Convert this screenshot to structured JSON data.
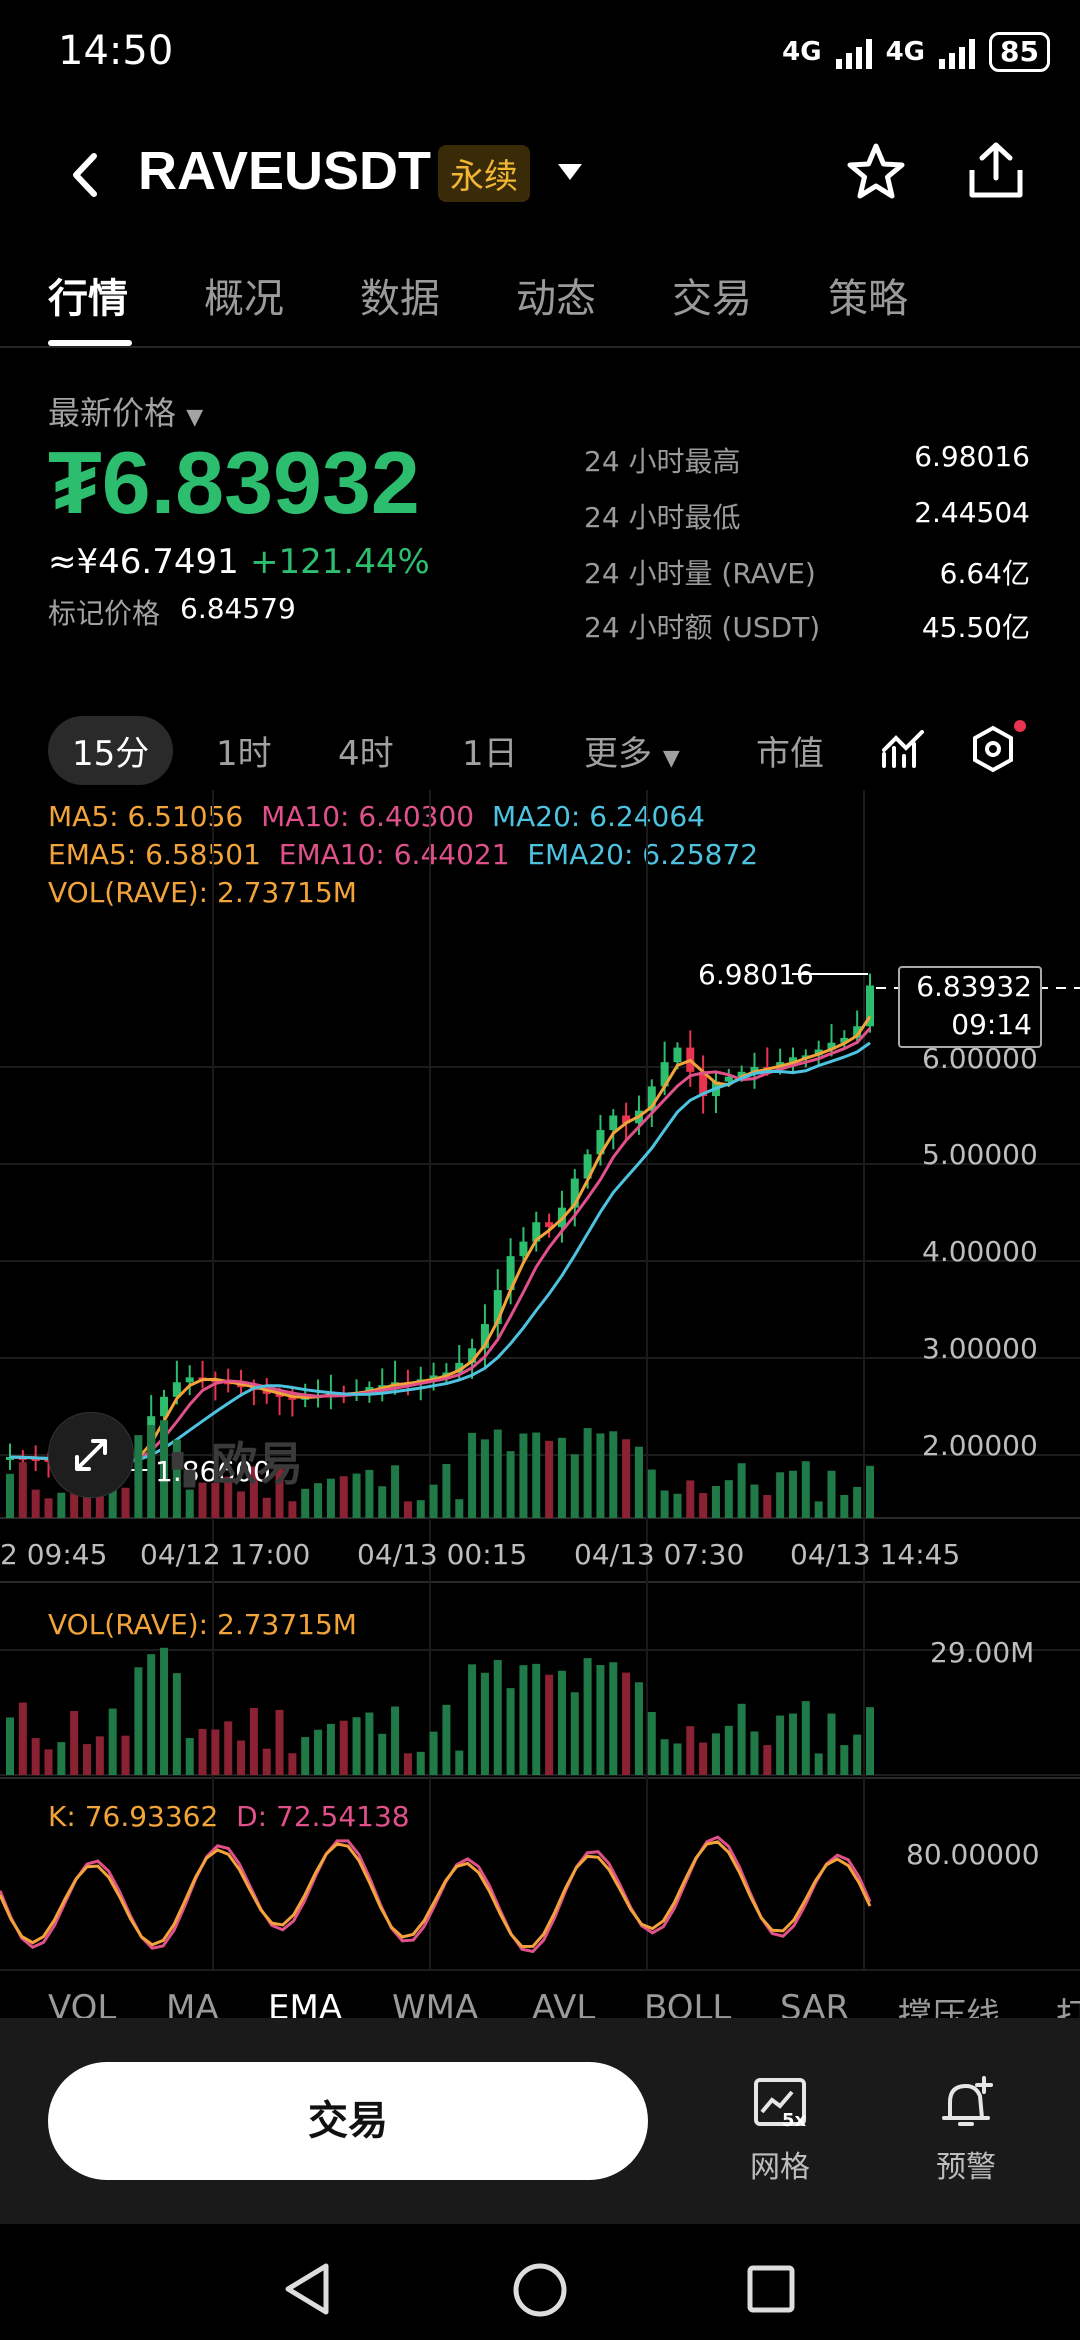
{
  "status": {
    "time": "14:50",
    "net1": "4G",
    "net2": "4G",
    "battery": "85"
  },
  "header": {
    "symbol": "RAVEUSDT",
    "badge": "永续"
  },
  "tabs": [
    "行情",
    "概况",
    "数据",
    "动态",
    "交易",
    "策略"
  ],
  "ticker": {
    "label": "最新价格",
    "price": "₮6.83932",
    "cny": "≈¥46.7491",
    "change": "+121.44%",
    "mark_label": "标记价格",
    "mark_price": "6.84579",
    "stats": [
      {
        "k": "24 小时最高",
        "v": "6.98016"
      },
      {
        "k": "24 小时最低",
        "v": "2.44504"
      },
      {
        "k": "24 小时量 (RAVE)",
        "v": "6.64亿"
      },
      {
        "k": "24 小时额 (USDT)",
        "v": "45.50亿"
      }
    ]
  },
  "timeframes": [
    "15分",
    "1时",
    "4时",
    "1日",
    "更多",
    "市值"
  ],
  "indicators": {
    "ma5": "MA5: 6.51056",
    "ma10": "MA10: 6.40300",
    "ma20": "MA20: 6.24064",
    "ema5": "EMA5: 6.58501",
    "ema10": "EMA10: 6.44021",
    "ema20": "EMA20: 6.25872",
    "vol": "VOL(RAVE): 2.73715M"
  },
  "chart_data": {
    "type": "candlestick",
    "y_ticks": [
      "6.00000",
      "5.00000",
      "4.00000",
      "3.00000",
      "2.00000"
    ],
    "y_tick_values": [
      6,
      5,
      4,
      3,
      2
    ],
    "x_ticks": [
      "2 09:45",
      "04/12 17:00",
      "04/13 00:15",
      "04/13 07:30",
      "04/13 14:45"
    ],
    "high_label": "6.98016",
    "low_label": "1.86600",
    "current_price": "6.83932",
    "countdown": "09:14",
    "watermark": "欧易",
    "close_path": [
      1.98,
      1.97,
      1.96,
      1.95,
      1.95,
      1.94,
      1.93,
      1.92,
      1.93,
      1.92,
      2.05,
      2.4,
      2.6,
      2.75,
      2.8,
      2.78,
      2.76,
      2.73,
      2.7,
      2.68,
      2.63,
      2.6,
      2.58,
      2.6,
      2.62,
      2.64,
      2.62,
      2.65,
      2.7,
      2.72,
      2.75,
      2.74,
      2.78,
      2.82,
      2.85,
      2.95,
      3.1,
      3.35,
      3.7,
      4.05,
      4.2,
      4.4,
      4.35,
      4.55,
      4.85,
      5.1,
      5.35,
      5.5,
      5.42,
      5.55,
      5.8,
      6.05,
      6.2,
      5.95,
      5.7,
      5.85,
      5.9,
      5.95,
      6.0,
      5.98,
      6.05,
      6.1,
      6.12,
      6.18,
      6.25,
      6.3,
      6.42,
      6.84
    ]
  },
  "volume_panel": {
    "label": "VOL(RAVE): 2.73715M",
    "max_label": "29.00M"
  },
  "kd_panel": {
    "k": "K: 76.93362",
    "d": "D: 72.54138",
    "level": "80.00000"
  },
  "indicator_tabs": [
    "VOL",
    "MA",
    "EMA",
    "WMA",
    "AVL",
    "BOLL",
    "SAR",
    "撑压线",
    "打"
  ],
  "bottom": {
    "trade": "交易",
    "grid": "网格",
    "grid_badge": "5x",
    "alert": "预警"
  }
}
